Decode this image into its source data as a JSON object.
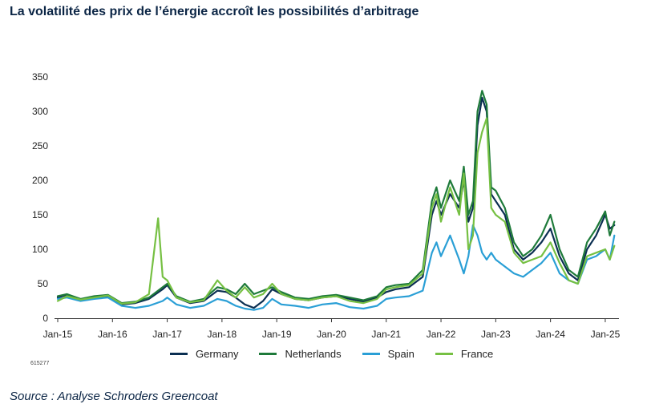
{
  "title": "La volatilité des prix de l’énergie accroît les possibilités d’arbitrage",
  "code": "615277",
  "source": "Source : Analyse Schroders Greencoat",
  "chart_data": {
    "type": "line",
    "title": "La volatilité des prix de l’énergie accroît les possibilités d’arbitrage",
    "xlabel": "",
    "ylabel": "",
    "ylim": [
      0,
      350
    ],
    "yticks": [
      0,
      50,
      100,
      150,
      200,
      250,
      300,
      350
    ],
    "xlim": [
      "2015-01",
      "2025-04"
    ],
    "xticks": [
      "2015-01",
      "2016-01",
      "2017-01",
      "2018-01",
      "2019-01",
      "2020-01",
      "2021-01",
      "2022-01",
      "2023-01",
      "2024-01",
      "2025-01"
    ],
    "xtick_labels": [
      "Jan-15",
      "Jan-16",
      "Jan-17",
      "Jan-18",
      "Jan-19",
      "Jan-20",
      "Jan-21",
      "Jan-22",
      "Jan-23",
      "Jan-24",
      "Jan-25"
    ],
    "grid": false,
    "legend": "bottom",
    "series": [
      {
        "name": "Germany",
        "color": "#0b2f52",
        "points": [
          [
            "2015-01",
            30
          ],
          [
            "2015-03",
            34
          ],
          [
            "2015-06",
            26
          ],
          [
            "2015-09",
            30
          ],
          [
            "2015-12",
            32
          ],
          [
            "2016-03",
            20
          ],
          [
            "2016-06",
            22
          ],
          [
            "2016-09",
            28
          ],
          [
            "2016-12",
            42
          ],
          [
            "2017-01",
            48
          ],
          [
            "2017-03",
            30
          ],
          [
            "2017-06",
            22
          ],
          [
            "2017-09",
            25
          ],
          [
            "2017-12",
            40
          ],
          [
            "2018-02",
            38
          ],
          [
            "2018-04",
            30
          ],
          [
            "2018-06",
            20
          ],
          [
            "2018-08",
            15
          ],
          [
            "2018-10",
            25
          ],
          [
            "2018-12",
            42
          ],
          [
            "2019-02",
            35
          ],
          [
            "2019-05",
            28
          ],
          [
            "2019-08",
            26
          ],
          [
            "2019-11",
            30
          ],
          [
            "2020-02",
            32
          ],
          [
            "2020-05",
            28
          ],
          [
            "2020-08",
            24
          ],
          [
            "2020-11",
            30
          ],
          [
            "2021-01",
            38
          ],
          [
            "2021-03",
            42
          ],
          [
            "2021-06",
            45
          ],
          [
            "2021-09",
            60
          ],
          [
            "2021-11",
            150
          ],
          [
            "2021-12",
            170
          ],
          [
            "2022-01",
            150
          ],
          [
            "2022-03",
            180
          ],
          [
            "2022-05",
            160
          ],
          [
            "2022-06",
            200
          ],
          [
            "2022-07",
            140
          ],
          [
            "2022-08",
            160
          ],
          [
            "2022-09",
            280
          ],
          [
            "2022-10",
            320
          ],
          [
            "2022-11",
            300
          ],
          [
            "2022-12",
            180
          ],
          [
            "2023-01",
            170
          ],
          [
            "2023-03",
            150
          ],
          [
            "2023-05",
            100
          ],
          [
            "2023-07",
            85
          ],
          [
            "2023-09",
            95
          ],
          [
            "2023-11",
            110
          ],
          [
            "2024-01",
            130
          ],
          [
            "2024-03",
            90
          ],
          [
            "2024-05",
            65
          ],
          [
            "2024-07",
            55
          ],
          [
            "2024-09",
            100
          ],
          [
            "2024-11",
            120
          ],
          [
            "2025-01",
            150
          ],
          [
            "2025-02",
            130
          ],
          [
            "2025-03",
            135
          ]
        ]
      },
      {
        "name": "Netherlands",
        "color": "#1e7a3a",
        "points": [
          [
            "2015-01",
            32
          ],
          [
            "2015-03",
            35
          ],
          [
            "2015-06",
            28
          ],
          [
            "2015-09",
            32
          ],
          [
            "2015-12",
            34
          ],
          [
            "2016-03",
            22
          ],
          [
            "2016-06",
            24
          ],
          [
            "2016-09",
            30
          ],
          [
            "2016-12",
            45
          ],
          [
            "2017-01",
            50
          ],
          [
            "2017-03",
            32
          ],
          [
            "2017-06",
            24
          ],
          [
            "2017-09",
            28
          ],
          [
            "2017-12",
            45
          ],
          [
            "2018-02",
            42
          ],
          [
            "2018-04",
            35
          ],
          [
            "2018-06",
            50
          ],
          [
            "2018-08",
            35
          ],
          [
            "2018-10",
            40
          ],
          [
            "2018-12",
            45
          ],
          [
            "2019-02",
            38
          ],
          [
            "2019-05",
            30
          ],
          [
            "2019-08",
            28
          ],
          [
            "2019-11",
            32
          ],
          [
            "2020-02",
            34
          ],
          [
            "2020-05",
            30
          ],
          [
            "2020-08",
            26
          ],
          [
            "2020-11",
            32
          ],
          [
            "2021-01",
            45
          ],
          [
            "2021-03",
            48
          ],
          [
            "2021-06",
            50
          ],
          [
            "2021-09",
            70
          ],
          [
            "2021-11",
            170
          ],
          [
            "2021-12",
            190
          ],
          [
            "2022-01",
            160
          ],
          [
            "2022-03",
            200
          ],
          [
            "2022-05",
            170
          ],
          [
            "2022-06",
            220
          ],
          [
            "2022-07",
            150
          ],
          [
            "2022-08",
            170
          ],
          [
            "2022-09",
            300
          ],
          [
            "2022-10",
            330
          ],
          [
            "2022-11",
            310
          ],
          [
            "2022-12",
            190
          ],
          [
            "2023-01",
            185
          ],
          [
            "2023-03",
            160
          ],
          [
            "2023-05",
            110
          ],
          [
            "2023-07",
            90
          ],
          [
            "2023-09",
            100
          ],
          [
            "2023-11",
            120
          ],
          [
            "2024-01",
            150
          ],
          [
            "2024-03",
            100
          ],
          [
            "2024-05",
            70
          ],
          [
            "2024-07",
            60
          ],
          [
            "2024-09",
            110
          ],
          [
            "2024-11",
            130
          ],
          [
            "2025-01",
            155
          ],
          [
            "2025-02",
            120
          ],
          [
            "2025-03",
            140
          ]
        ]
      },
      {
        "name": "Spain",
        "color": "#2a9fd6",
        "points": [
          [
            "2015-01",
            28
          ],
          [
            "2015-03",
            30
          ],
          [
            "2015-06",
            25
          ],
          [
            "2015-09",
            28
          ],
          [
            "2015-12",
            30
          ],
          [
            "2016-03",
            18
          ],
          [
            "2016-06",
            15
          ],
          [
            "2016-09",
            18
          ],
          [
            "2016-12",
            25
          ],
          [
            "2017-01",
            30
          ],
          [
            "2017-03",
            20
          ],
          [
            "2017-06",
            15
          ],
          [
            "2017-09",
            18
          ],
          [
            "2017-12",
            28
          ],
          [
            "2018-02",
            25
          ],
          [
            "2018-04",
            18
          ],
          [
            "2018-06",
            14
          ],
          [
            "2018-08",
            12
          ],
          [
            "2018-10",
            15
          ],
          [
            "2018-12",
            28
          ],
          [
            "2019-02",
            20
          ],
          [
            "2019-05",
            18
          ],
          [
            "2019-08",
            15
          ],
          [
            "2019-11",
            20
          ],
          [
            "2020-02",
            22
          ],
          [
            "2020-05",
            16
          ],
          [
            "2020-08",
            14
          ],
          [
            "2020-11",
            18
          ],
          [
            "2021-01",
            28
          ],
          [
            "2021-03",
            30
          ],
          [
            "2021-06",
            32
          ],
          [
            "2021-09",
            40
          ],
          [
            "2021-11",
            95
          ],
          [
            "2021-12",
            110
          ],
          [
            "2022-01",
            90
          ],
          [
            "2022-03",
            120
          ],
          [
            "2022-05",
            85
          ],
          [
            "2022-06",
            65
          ],
          [
            "2022-07",
            90
          ],
          [
            "2022-08",
            135
          ],
          [
            "2022-09",
            120
          ],
          [
            "2022-10",
            95
          ],
          [
            "2022-11",
            85
          ],
          [
            "2022-12",
            95
          ],
          [
            "2023-01",
            85
          ],
          [
            "2023-03",
            75
          ],
          [
            "2023-05",
            65
          ],
          [
            "2023-07",
            60
          ],
          [
            "2023-09",
            70
          ],
          [
            "2023-11",
            80
          ],
          [
            "2024-01",
            95
          ],
          [
            "2024-03",
            65
          ],
          [
            "2024-05",
            55
          ],
          [
            "2024-07",
            50
          ],
          [
            "2024-09",
            85
          ],
          [
            "2024-11",
            90
          ],
          [
            "2025-01",
            100
          ],
          [
            "2025-02",
            85
          ],
          [
            "2025-03",
            120
          ]
        ]
      },
      {
        "name": "France",
        "color": "#76c043",
        "points": [
          [
            "2015-01",
            25
          ],
          [
            "2015-03",
            32
          ],
          [
            "2015-06",
            27
          ],
          [
            "2015-09",
            30
          ],
          [
            "2015-12",
            33
          ],
          [
            "2016-03",
            21
          ],
          [
            "2016-06",
            23
          ],
          [
            "2016-09",
            35
          ],
          [
            "2016-11",
            145
          ],
          [
            "2016-12",
            60
          ],
          [
            "2017-01",
            55
          ],
          [
            "2017-03",
            30
          ],
          [
            "2017-06",
            23
          ],
          [
            "2017-09",
            26
          ],
          [
            "2017-12",
            55
          ],
          [
            "2018-02",
            40
          ],
          [
            "2018-04",
            30
          ],
          [
            "2018-06",
            45
          ],
          [
            "2018-08",
            30
          ],
          [
            "2018-10",
            35
          ],
          [
            "2018-12",
            50
          ],
          [
            "2019-02",
            35
          ],
          [
            "2019-05",
            28
          ],
          [
            "2019-08",
            26
          ],
          [
            "2019-11",
            30
          ],
          [
            "2020-02",
            32
          ],
          [
            "2020-05",
            25
          ],
          [
            "2020-08",
            22
          ],
          [
            "2020-11",
            28
          ],
          [
            "2021-01",
            42
          ],
          [
            "2021-03",
            45
          ],
          [
            "2021-06",
            48
          ],
          [
            "2021-09",
            65
          ],
          [
            "2021-11",
            160
          ],
          [
            "2021-12",
            180
          ],
          [
            "2022-01",
            140
          ],
          [
            "2022-03",
            190
          ],
          [
            "2022-05",
            150
          ],
          [
            "2022-06",
            210
          ],
          [
            "2022-07",
            100
          ],
          [
            "2022-08",
            120
          ],
          [
            "2022-09",
            240
          ],
          [
            "2022-10",
            270
          ],
          [
            "2022-11",
            290
          ],
          [
            "2022-12",
            160
          ],
          [
            "2023-01",
            150
          ],
          [
            "2023-03",
            140
          ],
          [
            "2023-05",
            95
          ],
          [
            "2023-07",
            80
          ],
          [
            "2023-09",
            85
          ],
          [
            "2023-11",
            90
          ],
          [
            "2024-01",
            110
          ],
          [
            "2024-03",
            80
          ],
          [
            "2024-05",
            55
          ],
          [
            "2024-07",
            50
          ],
          [
            "2024-09",
            90
          ],
          [
            "2024-11",
            95
          ],
          [
            "2025-01",
            100
          ],
          [
            "2025-02",
            85
          ],
          [
            "2025-03",
            105
          ]
        ]
      }
    ]
  }
}
